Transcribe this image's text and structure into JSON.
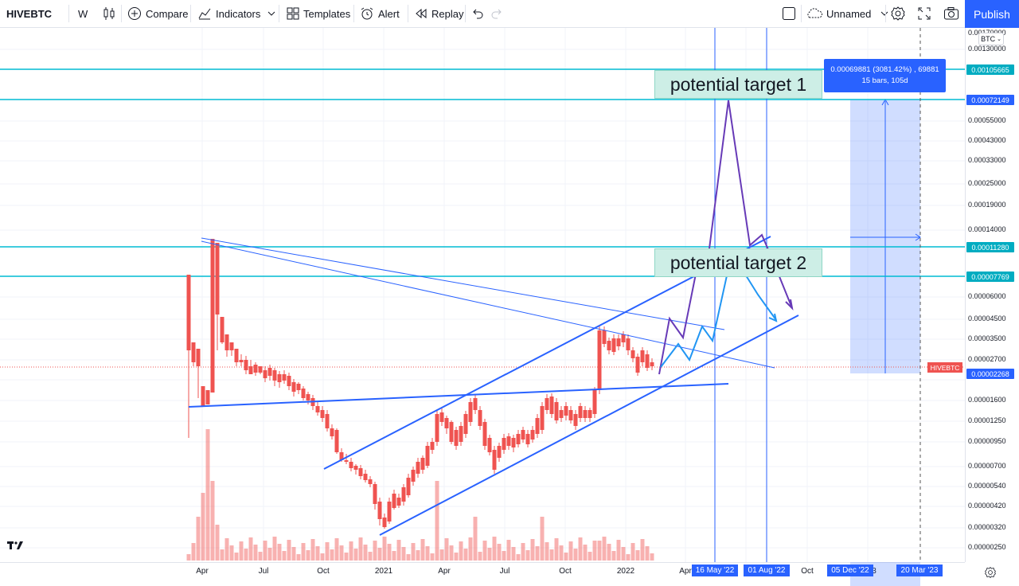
{
  "toolbar": {
    "symbol": "HIVEBTC",
    "interval": "W",
    "compare": "Compare",
    "indicators": "Indicators",
    "templates": "Templates",
    "alert": "Alert",
    "replay": "Replay",
    "layout_name": "Unnamed",
    "publish": "Publish"
  },
  "price_axis": {
    "currency": "BTC",
    "labels": [
      "0.00170000",
      "0.00130000",
      "0.00105665",
      "0.00072149",
      "0.00055000",
      "0.00043000",
      "0.00033000",
      "0.00025000",
      "0.00019000",
      "0.00014000",
      "0.00011280",
      "0.00007769",
      "0.00006000",
      "0.00004500",
      "0.00003500",
      "0.00002700",
      "0.00002268",
      "0.00001600",
      "0.00001250",
      "0.00000950",
      "0.00000700",
      "0.00000540",
      "0.00000420",
      "0.00000320",
      "0.00000250"
    ],
    "tags": {
      "level1": "0.00105665",
      "level2": "0.00072149",
      "level3": "0.00011280",
      "level4": "0.00007769",
      "current": "0.00002268",
      "symbol_tag": "HIVEBTC"
    }
  },
  "time_axis": {
    "labels": [
      "Apr",
      "Jul",
      "Oct",
      "2021",
      "Apr",
      "Jul",
      "Oct",
      "2022",
      "Apr",
      "Oct",
      "3"
    ],
    "highlighted": [
      "16 May '22",
      "01 Aug '22",
      "05 Dec '22",
      "20 Mar '23"
    ]
  },
  "annotations": {
    "target1": "potential target 1",
    "target2": "potential target 2"
  },
  "measure": {
    "line1": "0.00069881 (3081.42%) , 69881",
    "line2": "15 bars, 105d"
  },
  "colors": {
    "accent": "#2962ff",
    "up": "#26a69a",
    "down": "#ef5350",
    "hline": "#00bcd4",
    "annotation_bg": "#cdeee6",
    "purple": "#673ab7"
  },
  "icons": [
    "candles-icon",
    "plus-circle-icon",
    "indicators-icon",
    "templates-icon",
    "alarm-icon",
    "replay-icon",
    "undo-icon",
    "redo-icon",
    "settings-icon",
    "fullscreen-icon",
    "camera-icon",
    "tradingview-logo"
  ]
}
